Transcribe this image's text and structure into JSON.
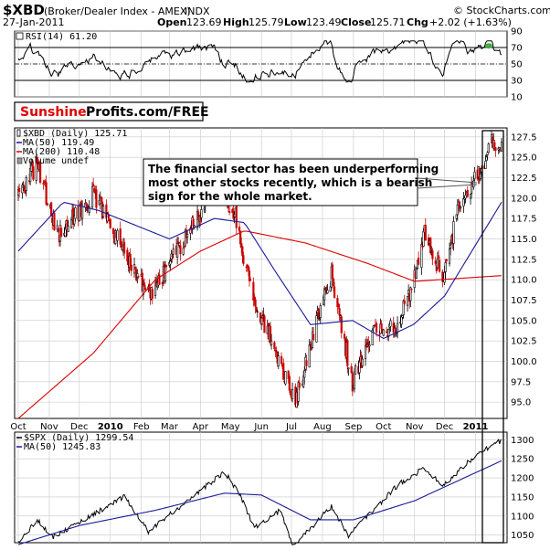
{
  "header": {
    "symbol": "$XBD",
    "name": "(Broker/Dealer Index - AMEX)",
    "type": "INDX",
    "source": "© StockCharts.com",
    "date": "27-Jan-2011",
    "open_label": "Open",
    "open": "123.69",
    "high_label": "High",
    "high": "125.79",
    "low_label": "Low",
    "low": "123.49",
    "close_label": "Close",
    "close": "125.71",
    "chg_label": "Chg",
    "chg": "+2.02 (+1.63%)"
  },
  "brand": {
    "part1": "Sunshine",
    "part2": "Profits.com/FREE"
  },
  "annotation": {
    "lines": [
      "The financial sector has been underperforming",
      "most other stocks recently, which is a bearish",
      "sign for the whole market."
    ]
  },
  "colors": {
    "up": "#000000",
    "down": "#cc0000",
    "ma50": "#1a1a99",
    "ma200": "#dd0000",
    "rsi": "#000000",
    "grid": "#c8c8c8",
    "panel_bg": "#ffffff",
    "frame": "#000000"
  },
  "chart_data": [
    {
      "type": "line",
      "name_panel": "rsi",
      "legend": "RSI(14) 61.20",
      "y_ticks": [
        "90",
        "70",
        "50",
        "30",
        "10"
      ],
      "ylim": [
        10,
        90
      ],
      "reference_lines": [
        70,
        50,
        30
      ],
      "last_value": 61.2
    },
    {
      "type": "candlestick",
      "name_panel": "price",
      "legend": [
        {
          "label": "$XBD (Daily) 125.71",
          "marker": "candle"
        },
        {
          "label": "MA(50) 119.49",
          "color": "#1a1a99"
        },
        {
          "label": "MA(200) 110.48",
          "color": "#dd0000"
        },
        {
          "label": "Volume undef",
          "marker": "volume"
        }
      ],
      "y_ticks": [
        "127.5",
        "125.0",
        "122.5",
        "120.0",
        "117.5",
        "115.0",
        "112.5",
        "110.0",
        "107.5",
        "105.0",
        "102.5",
        "100.0",
        "97.5",
        "95.0"
      ],
      "ylim": [
        93.0,
        128.6
      ],
      "x_start": "2009-10-01",
      "x_end": "2011-01-27",
      "key_points": [
        {
          "date": "2009-10-01",
          "close": 120.5
        },
        {
          "date": "2009-10-20",
          "close": 124.0
        },
        {
          "date": "2009-11-10",
          "close": 115.5
        },
        {
          "date": "2009-12-15",
          "close": 120.5
        },
        {
          "date": "2010-01-25",
          "close": 111.0
        },
        {
          "date": "2010-02-10",
          "close": 108.5
        },
        {
          "date": "2010-03-20",
          "close": 115.5
        },
        {
          "date": "2010-04-15",
          "close": 121.5
        },
        {
          "date": "2010-05-06",
          "close": 118.0
        },
        {
          "date": "2010-05-25",
          "close": 106.5
        },
        {
          "date": "2010-06-10",
          "close": 103.0
        },
        {
          "date": "2010-07-05",
          "close": 95.0
        },
        {
          "date": "2010-07-25",
          "close": 104.5
        },
        {
          "date": "2010-08-10",
          "close": 110.5
        },
        {
          "date": "2010-08-31",
          "close": 97.5
        },
        {
          "date": "2010-09-20",
          "close": 103.5
        },
        {
          "date": "2010-10-15",
          "close": 104.5
        },
        {
          "date": "2010-11-05",
          "close": 111.5
        },
        {
          "date": "2010-11-10",
          "close": 116.0
        },
        {
          "date": "2010-11-30",
          "close": 110.0
        },
        {
          "date": "2010-12-15",
          "close": 119.0
        },
        {
          "date": "2011-01-10",
          "close": 124.0
        },
        {
          "date": "2011-01-18",
          "close": 127.0
        },
        {
          "date": "2011-01-27",
          "close": 125.7
        }
      ],
      "ma50_points": [
        {
          "date": "2009-10-01",
          "v": 113.5
        },
        {
          "date": "2009-11-15",
          "v": 119.5
        },
        {
          "date": "2009-12-20",
          "v": 118.5
        },
        {
          "date": "2010-03-01",
          "v": 115.0
        },
        {
          "date": "2010-04-15",
          "v": 117.5
        },
        {
          "date": "2010-05-15",
          "v": 117.0
        },
        {
          "date": "2010-06-15",
          "v": 111.0
        },
        {
          "date": "2010-07-20",
          "v": 104.5
        },
        {
          "date": "2010-08-31",
          "v": 105.0
        },
        {
          "date": "2010-10-01",
          "v": 102.8
        },
        {
          "date": "2010-10-31",
          "v": 104.5
        },
        {
          "date": "2010-12-01",
          "v": 108.0
        },
        {
          "date": "2011-01-27",
          "v": 119.5
        }
      ],
      "ma200_points": [
        {
          "date": "2009-10-01",
          "v": 93.0
        },
        {
          "date": "2009-12-15",
          "v": 101.0
        },
        {
          "date": "2010-02-15",
          "v": 110.0
        },
        {
          "date": "2010-04-01",
          "v": 113.5
        },
        {
          "date": "2010-05-15",
          "v": 116.0
        },
        {
          "date": "2010-07-15",
          "v": 114.5
        },
        {
          "date": "2010-09-15",
          "v": 112.0
        },
        {
          "date": "2010-11-01",
          "v": 109.8
        },
        {
          "date": "2011-01-27",
          "v": 110.5
        }
      ]
    },
    {
      "type": "line",
      "name_panel": "spx",
      "legend": [
        {
          "label": "$SPX (Daily) 1299.54",
          "color": "#000000"
        },
        {
          "label": "MA(50) 1245.83",
          "color": "#1a1a99"
        }
      ],
      "y_ticks": [
        "1300",
        "1250",
        "1200",
        "1150",
        "1100",
        "1050"
      ],
      "ylim": [
        1030,
        1320
      ],
      "key_points": [
        {
          "date": "2009-10-01",
          "v": 1030
        },
        {
          "date": "2009-10-20",
          "v": 1090
        },
        {
          "date": "2009-11-05",
          "v": 1045
        },
        {
          "date": "2010-01-15",
          "v": 1150
        },
        {
          "date": "2010-02-08",
          "v": 1060
        },
        {
          "date": "2010-04-25",
          "v": 1215
        },
        {
          "date": "2010-05-10",
          "v": 1160
        },
        {
          "date": "2010-05-25",
          "v": 1070
        },
        {
          "date": "2010-06-20",
          "v": 1115
        },
        {
          "date": "2010-07-02",
          "v": 1020
        },
        {
          "date": "2010-08-10",
          "v": 1125
        },
        {
          "date": "2010-08-27",
          "v": 1050
        },
        {
          "date": "2010-10-15",
          "v": 1180
        },
        {
          "date": "2010-11-10",
          "v": 1225
        },
        {
          "date": "2010-11-30",
          "v": 1180
        },
        {
          "date": "2010-12-31",
          "v": 1258
        },
        {
          "date": "2011-01-27",
          "v": 1299
        }
      ],
      "ma50_points": [
        {
          "date": "2009-10-01",
          "v": 1025
        },
        {
          "date": "2009-12-01",
          "v": 1075
        },
        {
          "date": "2010-02-15",
          "v": 1115
        },
        {
          "date": "2010-04-25",
          "v": 1160
        },
        {
          "date": "2010-06-01",
          "v": 1155
        },
        {
          "date": "2010-07-20",
          "v": 1090
        },
        {
          "date": "2010-09-01",
          "v": 1090
        },
        {
          "date": "2010-11-01",
          "v": 1140
        },
        {
          "date": "2011-01-27",
          "v": 1245
        }
      ]
    }
  ],
  "x_axis": {
    "labels": [
      {
        "text": "Oct",
        "date": "2009-10-01"
      },
      {
        "text": "Nov",
        "date": "2009-11-01"
      },
      {
        "text": "Dec",
        "date": "2009-12-01"
      },
      {
        "text": "2010",
        "date": "2010-01-01",
        "bold": true
      },
      {
        "text": "Feb",
        "date": "2010-02-01"
      },
      {
        "text": "Mar",
        "date": "2010-03-01"
      },
      {
        "text": "Apr",
        "date": "2010-04-01"
      },
      {
        "text": "May",
        "date": "2010-05-01"
      },
      {
        "text": "Jun",
        "date": "2010-06-01"
      },
      {
        "text": "Jul",
        "date": "2010-07-01"
      },
      {
        "text": "Aug",
        "date": "2010-08-01"
      },
      {
        "text": "Sep",
        "date": "2010-09-01"
      },
      {
        "text": "Oct",
        "date": "2010-10-01"
      },
      {
        "text": "Nov",
        "date": "2010-11-01"
      },
      {
        "text": "Dec",
        "date": "2010-12-01"
      },
      {
        "text": "2011",
        "date": "2011-01-01",
        "bold": true
      }
    ]
  }
}
